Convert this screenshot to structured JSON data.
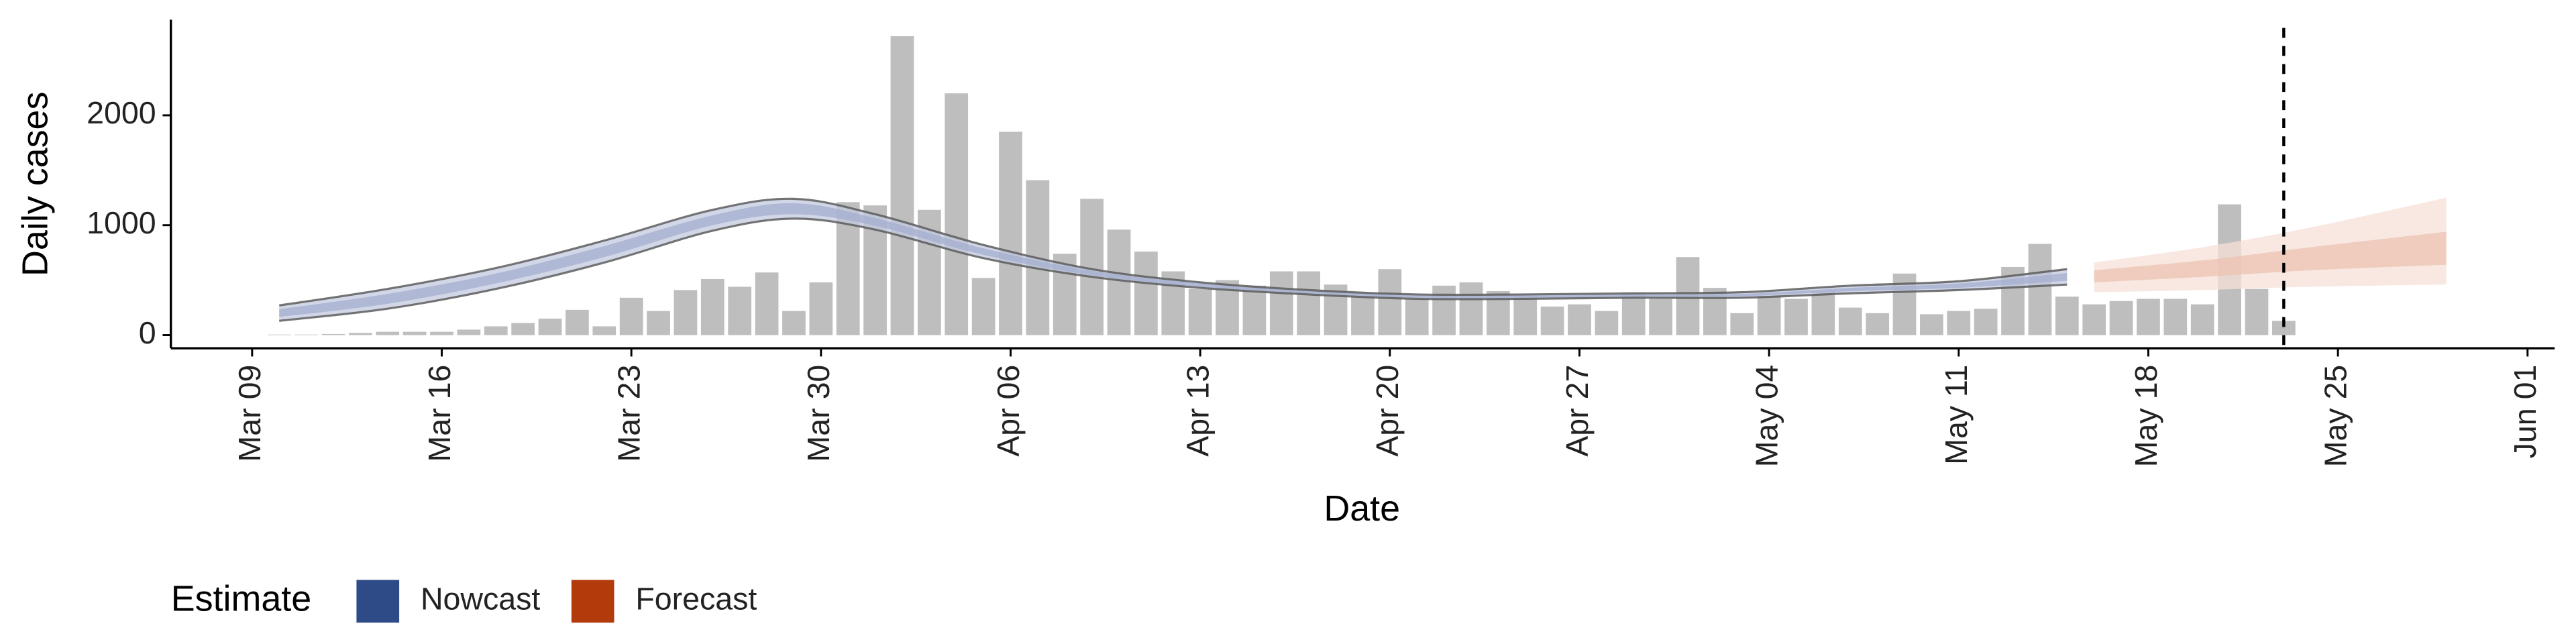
{
  "chart_data": {
    "type": "bar",
    "x_label": "Date",
    "y_label": "Daily cases",
    "color": "#bebebe",
    "x": [
      "Mar 10",
      "Mar 11",
      "Mar 12",
      "Mar 13",
      "Mar 14",
      "Mar 15",
      "Mar 16",
      "Mar 17",
      "Mar 18",
      "Mar 19",
      "Mar 20",
      "Mar 21",
      "Mar 22",
      "Mar 23",
      "Mar 24",
      "Mar 25",
      "Mar 26",
      "Mar 27",
      "Mar 28",
      "Mar 29",
      "Mar 30",
      "Mar 31",
      "Apr 01",
      "Apr 02",
      "Apr 03",
      "Apr 04",
      "Apr 05",
      "Apr 06",
      "Apr 07",
      "Apr 08",
      "Apr 09",
      "Apr 10",
      "Apr 11",
      "Apr 12",
      "Apr 13",
      "Apr 14",
      "Apr 15",
      "Apr 16",
      "Apr 17",
      "Apr 18",
      "Apr 19",
      "Apr 20",
      "Apr 21",
      "Apr 22",
      "Apr 23",
      "Apr 24",
      "Apr 25",
      "Apr 26",
      "Apr 27",
      "Apr 28",
      "Apr 29",
      "Apr 30",
      "May 01",
      "May 02",
      "May 03",
      "May 04",
      "May 05",
      "May 06",
      "May 07",
      "May 08",
      "May 09",
      "May 10",
      "May 11",
      "May 12",
      "May 13",
      "May 14",
      "May 15",
      "May 16",
      "May 17",
      "May 18",
      "May 19",
      "May 20",
      "May 21",
      "May 22",
      "May 23"
    ],
    "values": [
      5,
      5,
      10,
      20,
      30,
      30,
      30,
      50,
      80,
      110,
      150,
      230,
      80,
      340,
      220,
      410,
      510,
      440,
      570,
      220,
      480,
      1210,
      1180,
      2720,
      1140,
      2200,
      520,
      1850,
      1410,
      740,
      1240,
      960,
      760,
      580,
      420,
      500,
      450,
      580,
      580,
      460,
      360,
      600,
      330,
      450,
      480,
      400,
      360,
      260,
      280,
      220,
      380,
      330,
      710,
      430,
      200,
      360,
      330,
      400,
      250,
      200,
      560,
      190,
      220,
      240,
      620,
      830,
      350,
      280,
      310,
      330,
      330,
      280,
      1190,
      420,
      130
    ],
    "xlim": [
      "Mar 06",
      "Jun 02"
    ],
    "xticks": [
      "Mar 09",
      "Mar 16",
      "Mar 23",
      "Mar 30",
      "Apr 06",
      "Apr 13",
      "Apr 20",
      "Apr 27",
      "May 04",
      "May 11",
      "May 18",
      "May 25",
      "Jun 01"
    ],
    "ylim": [
      -120,
      2870
    ],
    "yticks": [
      0,
      1000,
      2000
    ],
    "vline": "May 23",
    "legend_title": "Estimate",
    "estimates": [
      {
        "name": "Nowcast",
        "color": "#2e4a87",
        "band_color": "#c3cadf",
        "inner_color": "#a3aecd",
        "outline": true,
        "x": [
          "Mar 10",
          "Mar 14",
          "Mar 18",
          "Mar 22",
          "Mar 26",
          "Mar 29",
          "Apr 01",
          "Apr 05",
          "Apr 09",
          "Apr 13",
          "Apr 17",
          "Apr 21",
          "Apr 25",
          "Apr 29",
          "May 03",
          "May 07",
          "May 11",
          "May 15"
        ],
        "lower90": [
          130,
          240,
          420,
          660,
          950,
          1060,
          960,
          700,
          530,
          430,
          370,
          330,
          330,
          340,
          340,
          380,
          410,
          460
        ],
        "upper90": [
          270,
          420,
          610,
          860,
          1140,
          1240,
          1100,
          820,
          600,
          480,
          410,
          370,
          370,
          380,
          390,
          450,
          490,
          600
        ],
        "lower50": [
          165,
          285,
          470,
          710,
          1000,
          1100,
          995,
          730,
          545,
          440,
          380,
          340,
          340,
          350,
          355,
          400,
          430,
          495
        ],
        "upper50": [
          235,
          375,
          560,
          810,
          1090,
          1200,
          1065,
          790,
          585,
          470,
          400,
          360,
          360,
          370,
          375,
          430,
          470,
          565
        ]
      },
      {
        "name": "Forecast",
        "color": "#b33a0a",
        "band_color": "#f6e0d7",
        "inner_color": "#ecc3b2",
        "outline": false,
        "x": [
          "May 16",
          "May 20",
          "May 24",
          "May 29"
        ],
        "lower90": [
          390,
          410,
          440,
          460
        ],
        "upper90": [
          660,
          800,
          980,
          1250
        ],
        "lower50": [
          480,
          530,
          590,
          640
        ],
        "upper50": [
          590,
          680,
          800,
          940
        ]
      }
    ]
  }
}
